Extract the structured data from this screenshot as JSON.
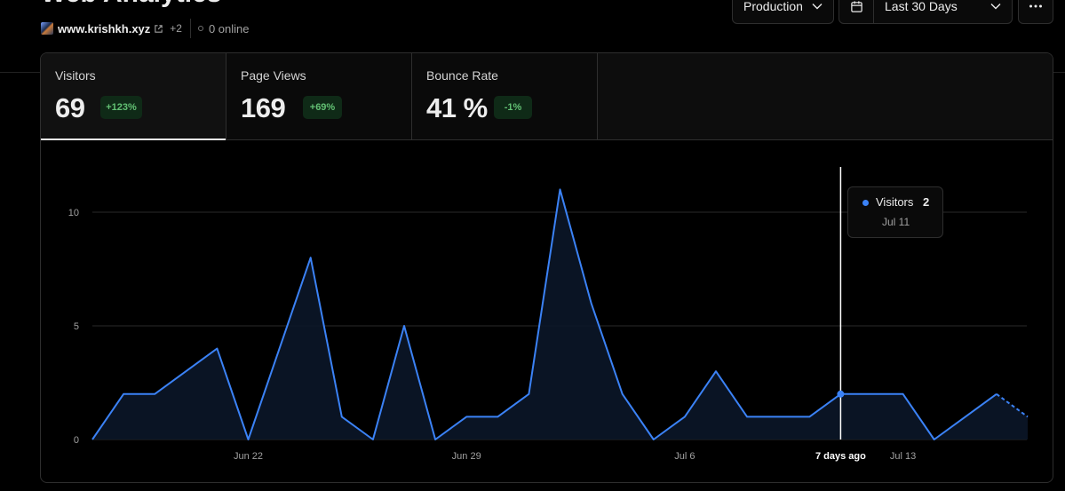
{
  "header": {
    "title": "Web Analytics",
    "site": "www.krishkh.xyz",
    "more_sites": "+2",
    "online": "0 online"
  },
  "toolbar": {
    "environment": "Production",
    "date_range": "Last 30 Days"
  },
  "tabs": [
    {
      "label": "Visitors",
      "value": "69",
      "change": "+123%"
    },
    {
      "label": "Page Views",
      "value": "169",
      "change": "+69%"
    },
    {
      "label": "Bounce Rate",
      "value": "41 %",
      "change": "-1%"
    }
  ],
  "tooltip": {
    "series": "Visitors",
    "value": "2",
    "date": "Jul 11"
  },
  "colors": {
    "line": "#3b82f6",
    "badge_bg": "#0f2a17",
    "badge_text": "#62c073"
  },
  "chart_data": {
    "type": "area",
    "series": [
      {
        "name": "Visitors",
        "values": [
          0,
          2,
          2,
          3,
          4,
          0,
          4,
          8,
          1,
          0,
          5,
          0,
          1,
          1,
          2,
          11,
          6,
          2,
          0,
          1,
          3,
          1,
          1,
          1,
          2,
          2,
          2,
          0,
          1,
          2,
          1
        ]
      }
    ],
    "incomplete_last_segment": true,
    "y_ticks": [
      0,
      5,
      10
    ],
    "ylim": [
      0,
      11
    ],
    "x_tick_labels": [
      {
        "index": 5,
        "label": "Jun 22"
      },
      {
        "index": 12,
        "label": "Jun 29"
      },
      {
        "index": 19,
        "label": "Jul 6"
      },
      {
        "index": 24,
        "label": "7 days ago",
        "highlight": true
      },
      {
        "index": 26,
        "label": "Jul 13"
      }
    ],
    "hover_index": 24,
    "grid": true
  }
}
